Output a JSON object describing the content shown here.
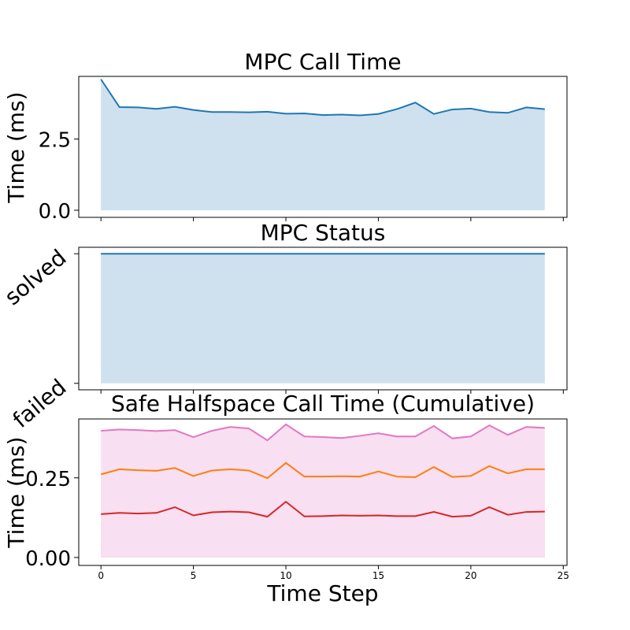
{
  "chart_data": [
    {
      "type": "area",
      "title": "MPC Call Time",
      "xlabel": "",
      "ylabel": "Time (ms)",
      "x": [
        0,
        1,
        2,
        3,
        4,
        5,
        6,
        7,
        8,
        9,
        10,
        11,
        12,
        13,
        14,
        15,
        16,
        17,
        18,
        19,
        20,
        21,
        22,
        23,
        24
      ],
      "xlim": [
        -1.2,
        25.2
      ],
      "ylim": [
        -0.25,
        4.7
      ],
      "yticks": [
        0.0,
        2.5
      ],
      "ytick_labels": [
        "0.0",
        "2.5"
      ],
      "series": [
        {
          "values": [
            4.6,
            3.62,
            3.61,
            3.56,
            3.63,
            3.52,
            3.45,
            3.45,
            3.44,
            3.46,
            3.39,
            3.4,
            3.34,
            3.36,
            3.33,
            3.38,
            3.55,
            3.78,
            3.38,
            3.54,
            3.57,
            3.45,
            3.42,
            3.61,
            3.55
          ],
          "color": "#1f77b4",
          "fill": "#cfe1ee"
        }
      ],
      "grid": false
    },
    {
      "type": "area",
      "title": "MPC Status",
      "xlabel": "",
      "ylabel": "",
      "x": [
        0,
        1,
        2,
        3,
        4,
        5,
        6,
        7,
        8,
        9,
        10,
        11,
        12,
        13,
        14,
        15,
        16,
        17,
        18,
        19,
        20,
        21,
        22,
        23,
        24
      ],
      "xlim": [
        -1.2,
        25.2
      ],
      "ylim": [
        -0.05,
        1.05
      ],
      "yticks": [
        0,
        1
      ],
      "ytick_labels": [
        "failed",
        "solved"
      ],
      "series": [
        {
          "values": [
            1,
            1,
            1,
            1,
            1,
            1,
            1,
            1,
            1,
            1,
            1,
            1,
            1,
            1,
            1,
            1,
            1,
            1,
            1,
            1,
            1,
            1,
            1,
            1,
            1
          ],
          "color": "#1f77b4",
          "fill": "#cfe1ee"
        }
      ],
      "grid": false
    },
    {
      "type": "area",
      "title": "Safe Halfspace Call Time (Cumulative)",
      "xlabel": "Time Step",
      "ylabel": "Time (ms)",
      "x": [
        0,
        1,
        2,
        3,
        4,
        5,
        6,
        7,
        8,
        9,
        10,
        11,
        12,
        13,
        14,
        15,
        16,
        17,
        18,
        19,
        20,
        21,
        22,
        23,
        24
      ],
      "xlim": [
        -1.2,
        25.2
      ],
      "xticks": [
        0,
        5,
        10,
        15,
        20,
        25
      ],
      "xtick_labels": [
        "0",
        "5",
        "10",
        "15",
        "20",
        "25"
      ],
      "ylim": [
        -0.025,
        0.435
      ],
      "yticks": [
        0.0,
        0.25
      ],
      "ytick_labels": [
        "0.00",
        "0.25"
      ],
      "series": [
        {
          "values": [
            0.136,
            0.14,
            0.138,
            0.14,
            0.158,
            0.132,
            0.142,
            0.144,
            0.142,
            0.128,
            0.175,
            0.129,
            0.13,
            0.132,
            0.131,
            0.132,
            0.13,
            0.13,
            0.143,
            0.128,
            0.131,
            0.158,
            0.134,
            0.143,
            0.144
          ],
          "color": "#d62728",
          "fill": "#f4cccc"
        },
        {
          "values": [
            0.261,
            0.277,
            0.274,
            0.272,
            0.281,
            0.256,
            0.273,
            0.277,
            0.273,
            0.249,
            0.297,
            0.254,
            0.254,
            0.255,
            0.254,
            0.27,
            0.254,
            0.252,
            0.284,
            0.253,
            0.256,
            0.287,
            0.264,
            0.277,
            0.277
          ],
          "color": "#ff7f0e",
          "fill": "#fde0c5"
        },
        {
          "values": [
            0.398,
            0.402,
            0.4,
            0.397,
            0.4,
            0.378,
            0.398,
            0.41,
            0.405,
            0.368,
            0.418,
            0.38,
            0.378,
            0.375,
            0.382,
            0.39,
            0.38,
            0.38,
            0.413,
            0.374,
            0.38,
            0.415,
            0.385,
            0.41,
            0.407
          ],
          "color": "#e377c2",
          "fill": "#f8dff1"
        }
      ],
      "grid": false
    }
  ]
}
